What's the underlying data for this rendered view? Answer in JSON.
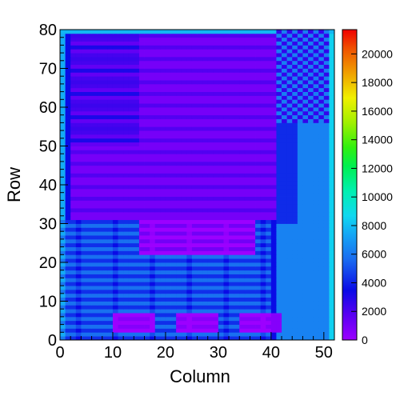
{
  "chart_data": {
    "type": "heatmap",
    "title": "",
    "xlabel": "Column",
    "ylabel": "Row",
    "xlim": [
      0,
      52
    ],
    "ylim": [
      0,
      80
    ],
    "x_ticks": [
      "0",
      "10",
      "20",
      "30",
      "40",
      "50"
    ],
    "y_ticks": [
      "0",
      "10",
      "20",
      "30",
      "40",
      "50",
      "60",
      "70",
      "80"
    ],
    "colorbar": {
      "min": 0,
      "max": 21700,
      "ticks": [
        "0",
        "2000",
        "4000",
        "6000",
        "8000",
        "10000",
        "12000",
        "14000",
        "16000",
        "18000",
        "20000"
      ]
    },
    "grid": false,
    "n_cols": 52,
    "n_rows": 80,
    "regions_note": "Approximate cell values reconstructed from the color map.",
    "regions": [
      {
        "name": "background-blue",
        "x": [
          0,
          52
        ],
        "y": [
          0,
          80
        ],
        "value": 3500
      },
      {
        "name": "lower-cyan-band",
        "x": [
          0,
          40
        ],
        "y": [
          0,
          31
        ],
        "value": 5800
      },
      {
        "name": "upper-purple-block",
        "x": [
          2,
          41
        ],
        "y": [
          31,
          80
        ],
        "value": 1000
      },
      {
        "name": "upper-left-stripes",
        "x": [
          2,
          15
        ],
        "y": [
          50,
          80
        ],
        "value": 2200
      },
      {
        "name": "mid-purple-block",
        "x": [
          15,
          37
        ],
        "y": [
          22,
          31
        ],
        "value": 1100
      },
      {
        "name": "right-cyan-column",
        "x": [
          41,
          51
        ],
        "y": [
          0,
          56
        ],
        "value": 6300
      },
      {
        "name": "right-checker",
        "x": [
          41,
          51
        ],
        "y": [
          56,
          80
        ],
        "value": 5000
      },
      {
        "name": "bottom-pad-1",
        "x": [
          10,
          18
        ],
        "y": [
          2,
          7
        ],
        "value": 600
      },
      {
        "name": "bottom-pad-2",
        "x": [
          22,
          30
        ],
        "y": [
          2,
          7
        ],
        "value": 600
      },
      {
        "name": "bottom-pad-3",
        "x": [
          34,
          42
        ],
        "y": [
          2,
          7
        ],
        "value": 600
      },
      {
        "name": "left-edge-column",
        "x": [
          0,
          1
        ],
        "y": [
          0,
          80
        ],
        "value": 7500
      },
      {
        "name": "right-edge-column",
        "x": [
          51,
          52
        ],
        "y": [
          0,
          80
        ],
        "value": 8500
      },
      {
        "name": "top-edge-row",
        "x": [
          0,
          52
        ],
        "y": [
          79,
          80
        ],
        "value": 7800
      }
    ]
  }
}
